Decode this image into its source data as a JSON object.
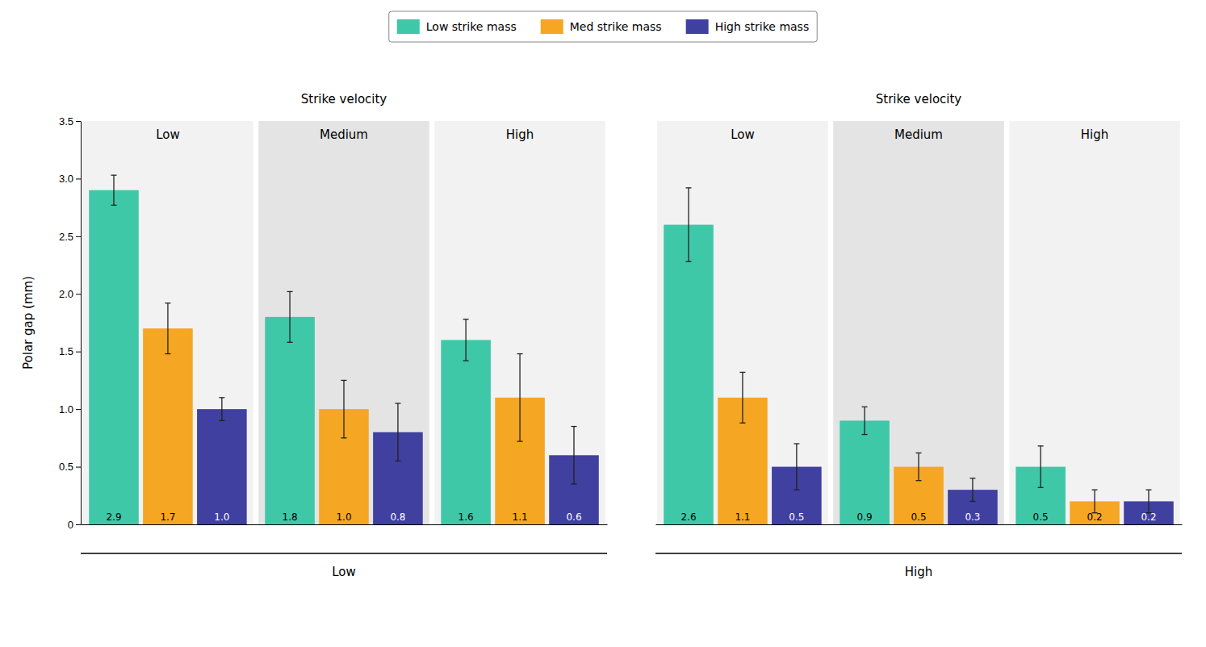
{
  "chart_data": [
    {
      "type": "bar",
      "title": "Low",
      "xlabel": "Strike velocity",
      "ylabel": "Polar gap (mm)",
      "categories": [
        "Low",
        "Medium",
        "High"
      ],
      "series": [
        {
          "name": "Low strike mass",
          "color": "#3ec8a8",
          "values": [
            2.9,
            1.8,
            1.6
          ],
          "errors": [
            0.13,
            0.22,
            0.18
          ],
          "value_labels": [
            "2.9",
            "1.8",
            "1.6"
          ]
        },
        {
          "name": "Med strike mass",
          "color": "#f5a623",
          "values": [
            1.7,
            1.0,
            1.1
          ],
          "errors": [
            0.22,
            0.25,
            0.38
          ],
          "value_labels": [
            "1.7",
            "1.0",
            "1.1"
          ]
        },
        {
          "name": "High strike mass",
          "color": "#4040a0",
          "values": [
            1.0,
            0.8,
            0.6
          ],
          "errors": [
            0.1,
            0.25,
            0.25
          ],
          "value_labels": [
            "1.0",
            "0.8",
            "0.6"
          ]
        }
      ],
      "ylim": [
        0,
        3.5
      ],
      "yticks": [
        0,
        0.5,
        {
          "value": 1,
          "label": "1.0"
        },
        1.5,
        {
          "value": 2,
          "label": "2.0"
        },
        2.5,
        {
          "value": 3,
          "label": "3.0"
        },
        3.5
      ],
      "data_labels": true,
      "grid": false,
      "legend": "top"
    },
    {
      "type": "bar",
      "title": "High",
      "xlabel": "Strike velocity",
      "categories": [
        "Low",
        "Medium",
        "High"
      ],
      "series": [
        {
          "name": "Low strike mass",
          "color": "#3ec8a8",
          "values": [
            2.6,
            0.9,
            0.5
          ],
          "errors": [
            0.32,
            0.12,
            0.18
          ],
          "value_labels": [
            "2.6",
            "0.9",
            "0.5"
          ]
        },
        {
          "name": "Med strike mass",
          "color": "#f5a623",
          "values": [
            1.1,
            0.5,
            0.2
          ],
          "errors": [
            0.22,
            0.12,
            0.1
          ],
          "value_labels": [
            "1.1",
            "0.5",
            "0.2"
          ]
        },
        {
          "name": "High strike mass",
          "color": "#4040a0",
          "values": [
            0.5,
            0.3,
            0.2
          ],
          "errors": [
            0.2,
            0.1,
            0.1
          ],
          "value_labels": [
            "0.5",
            "0.3",
            "0.2"
          ]
        }
      ],
      "ylim": [
        0,
        3.5
      ],
      "data_labels": true,
      "grid": false,
      "tick_labels": "x"
    }
  ]
}
